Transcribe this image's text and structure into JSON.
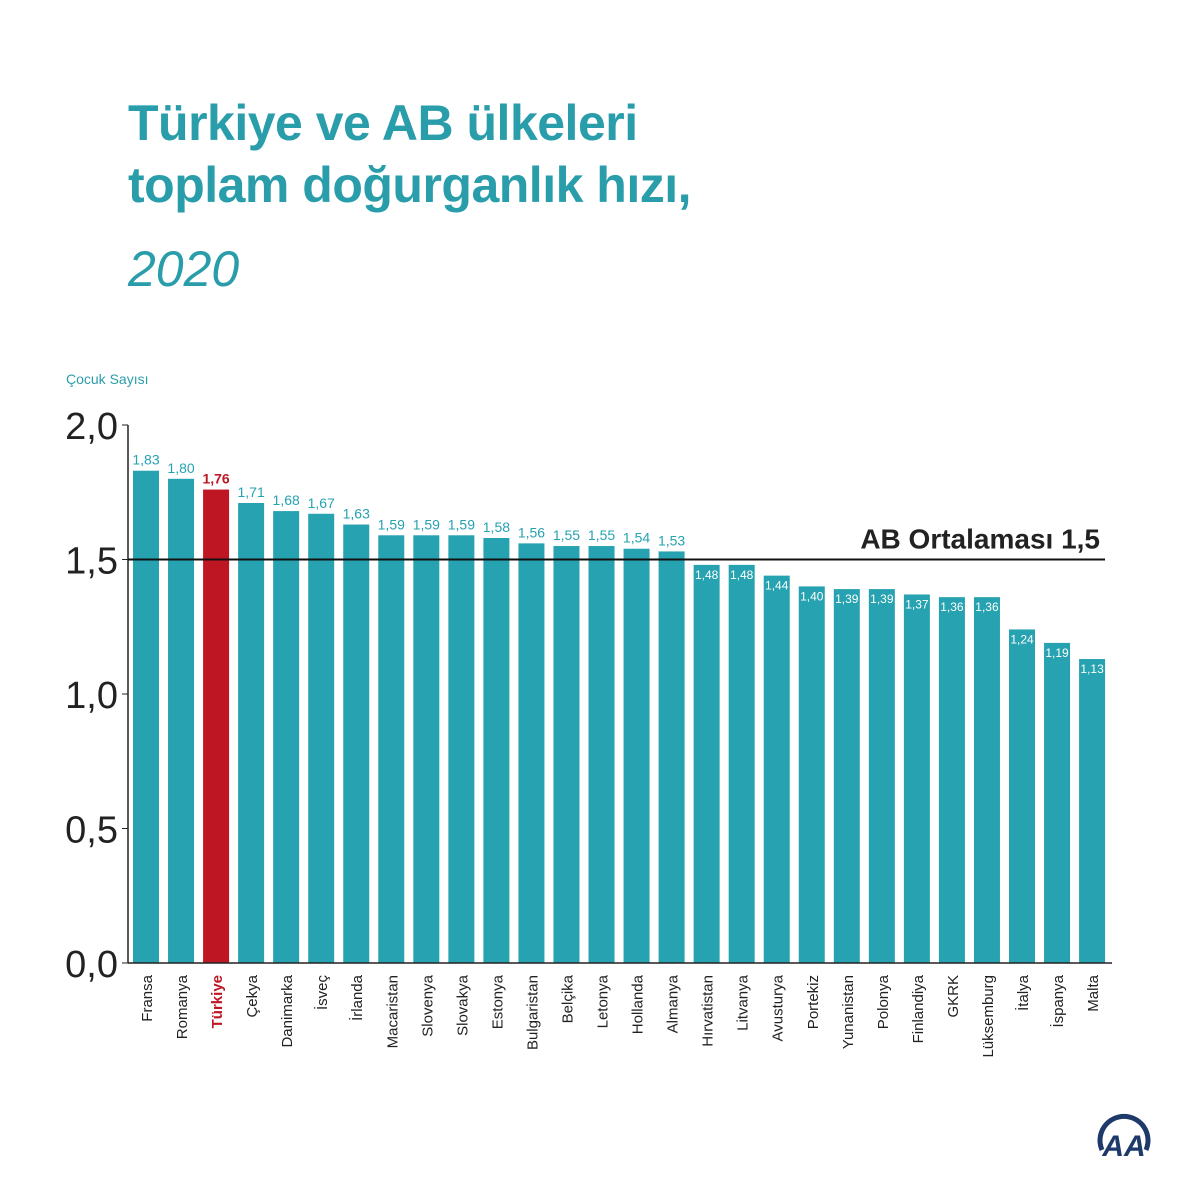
{
  "title_line1": "Türkiye ve AB ülkeleri",
  "title_line2": "toplam doğurganlık hızı,",
  "title_year": "2020",
  "colors": {
    "bar": "#26a2b1",
    "highlight": "#be1622",
    "title": "#2a9dab",
    "logo": "#1d3a6b"
  },
  "logo": "AA",
  "chart_data": {
    "type": "bar",
    "ylabel": "Çocuk Sayısı",
    "ylim": [
      0,
      2.0
    ],
    "yticks": [
      "0,0",
      "0,5",
      "1,0",
      "1,5",
      "2,0"
    ],
    "categories": [
      "Fransa",
      "Romanya",
      "Türkiye",
      "Çekya",
      "Danimarka",
      "İsveç",
      "İrlanda",
      "Macaristan",
      "Slovenya",
      "Slovakya",
      "Estonya",
      "Bulgaristan",
      "Belçika",
      "Letonya",
      "Hollanda",
      "Almanya",
      "Hırvatistan",
      "Litvanya",
      "Avusturya",
      "Portekiz",
      "Yunanistan",
      "Polonya",
      "Finlandiya",
      "GKRK",
      "Lüksemburg",
      "İtalya",
      "İspanya",
      "Malta"
    ],
    "values": [
      1.83,
      1.8,
      1.76,
      1.71,
      1.68,
      1.67,
      1.63,
      1.59,
      1.59,
      1.59,
      1.58,
      1.56,
      1.55,
      1.55,
      1.54,
      1.53,
      1.48,
      1.48,
      1.44,
      1.4,
      1.39,
      1.39,
      1.37,
      1.36,
      1.36,
      1.24,
      1.19,
      1.13
    ],
    "labels": [
      "1,83",
      "1,80",
      "1,76",
      "1,71",
      "1,68",
      "1,67",
      "1,63",
      "1,59",
      "1,59",
      "1,59",
      "1,58",
      "1,56",
      "1,55",
      "1,55",
      "1,54",
      "1,53",
      "1,48",
      "1,48",
      "1,44",
      "1,40",
      "1,39",
      "1,39",
      "1,37",
      "1,36",
      "1,36",
      "1,24",
      "1,19",
      "1,13"
    ],
    "highlight": "Türkiye",
    "reference_line": {
      "value": 1.5,
      "label": "AB  Ortalaması 1,5"
    }
  }
}
